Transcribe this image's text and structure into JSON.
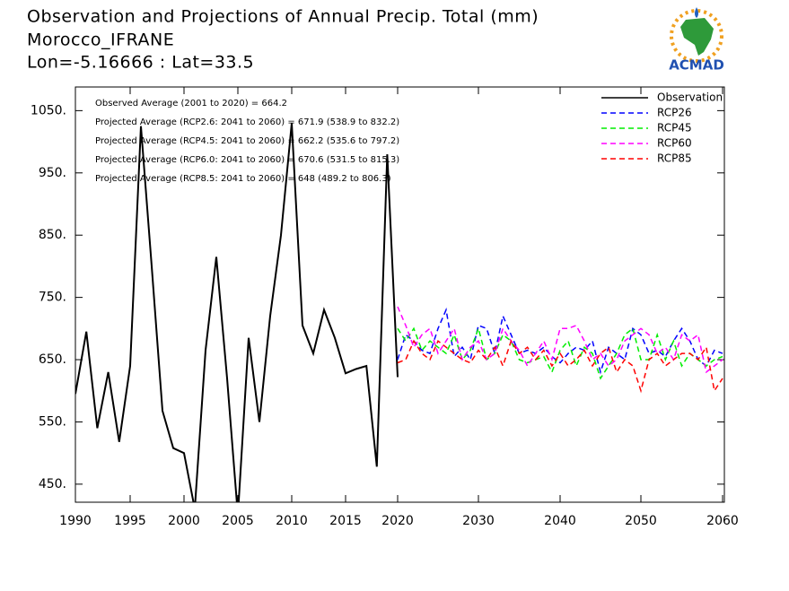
{
  "chart_data": {
    "type": "line",
    "title": "Observation and Projections of Annual Precip. Total (mm)",
    "subtitle": "Morocco_IFRANE",
    "location": "Lon=-5.16666 : Lat=33.5",
    "logo_text": "ACMAD",
    "annotations": [
      "Observed Average (2001 to 2020) = 664.2",
      "Projected Average (RCP2.6: 2041 to 2060) = 671.9 (538.9 to 832.2)",
      "Projected Average (RCP4.5: 2041 to 2060) = 662.2 (535.6 to 797.2)",
      "Projected Average (RCP6.0: 2041 to 2060) = 670.6 (531.5 to 815.3)",
      "Projected Average (RCP8.5: 2041 to 2060) = 648 (489.2 to 806.3)"
    ],
    "xlim": [
      1990,
      2060
    ],
    "xticks": [
      1990,
      1995,
      2000,
      2005,
      2010,
      2015,
      2020,
      2030,
      2040,
      2050,
      2060
    ],
    "ylim": [
      421,
      1088
    ],
    "yticks": [
      {
        "value": 450,
        "label": "450."
      },
      {
        "value": 550,
        "label": "550."
      },
      {
        "value": 650,
        "label": "650."
      },
      {
        "value": 750,
        "label": "750."
      },
      {
        "value": 850,
        "label": "850."
      },
      {
        "value": 950,
        "label": "950."
      },
      {
        "value": 1050,
        "label": "1050."
      }
    ],
    "legend": "upper right",
    "series": [
      {
        "name": "Observation",
        "color": "#000000",
        "dash": false,
        "x": [
          1990,
          1991,
          1992,
          1993,
          1994,
          1995,
          1996,
          1997,
          1998,
          1999,
          2000,
          2001,
          2002,
          2003,
          2004,
          2005,
          2006,
          2007,
          2008,
          2009,
          2010,
          2011,
          2012,
          2013,
          2014,
          2015,
          2016,
          2017,
          2018,
          2019,
          2020
        ],
        "values": [
          595,
          695,
          540,
          630,
          518,
          640,
          1025,
          800,
          568,
          508,
          500,
          410,
          665,
          815,
          620,
          400,
          685,
          550,
          720,
          850,
          1030,
          705,
          660,
          730,
          685,
          628,
          635,
          640,
          478,
          980,
          622
        ]
      },
      {
        "name": "RCP26",
        "color": "#0000ff",
        "dash": true,
        "x": [
          2020,
          2021,
          2022,
          2023,
          2024,
          2025,
          2026,
          2027,
          2028,
          2029,
          2030,
          2031,
          2032,
          2033,
          2034,
          2035,
          2036,
          2037,
          2038,
          2039,
          2040,
          2041,
          2042,
          2043,
          2044,
          2045,
          2046,
          2047,
          2048,
          2049,
          2050,
          2051,
          2052,
          2053,
          2054,
          2055,
          2056,
          2057,
          2058,
          2059,
          2060
        ],
        "values": [
          650,
          690,
          680,
          665,
          660,
          700,
          730,
          655,
          670,
          650,
          705,
          700,
          660,
          720,
          690,
          660,
          665,
          660,
          670,
          655,
          645,
          660,
          670,
          665,
          680,
          630,
          670,
          660,
          650,
          700,
          690,
          660,
          665,
          655,
          680,
          700,
          680,
          650,
          640,
          665,
          660
        ]
      },
      {
        "name": "RCP45",
        "color": "#00ee00",
        "dash": true,
        "x": [
          2020,
          2021,
          2022,
          2023,
          2024,
          2025,
          2026,
          2027,
          2028,
          2029,
          2030,
          2031,
          2032,
          2033,
          2034,
          2035,
          2036,
          2037,
          2038,
          2039,
          2040,
          2041,
          2042,
          2043,
          2044,
          2045,
          2046,
          2047,
          2048,
          2049,
          2050,
          2051,
          2052,
          2053,
          2054,
          2055,
          2056,
          2057,
          2058,
          2059,
          2060
        ],
        "values": [
          700,
          680,
          700,
          665,
          680,
          670,
          660,
          690,
          650,
          665,
          700,
          650,
          660,
          690,
          680,
          650,
          645,
          650,
          655,
          630,
          665,
          680,
          640,
          670,
          660,
          620,
          640,
          660,
          690,
          700,
          650,
          650,
          690,
          650,
          680,
          640,
          660,
          650,
          640,
          650,
          655
        ]
      },
      {
        "name": "RCP60",
        "color": "#ff00ff",
        "dash": true,
        "x": [
          2020,
          2021,
          2022,
          2023,
          2024,
          2025,
          2026,
          2027,
          2028,
          2029,
          2030,
          2031,
          2032,
          2033,
          2034,
          2035,
          2036,
          2037,
          2038,
          2039,
          2040,
          2041,
          2042,
          2043,
          2044,
          2045,
          2046,
          2047,
          2048,
          2049,
          2050,
          2051,
          2052,
          2053,
          2054,
          2055,
          2056,
          2057,
          2058,
          2059,
          2060
        ],
        "values": [
          735,
          705,
          670,
          690,
          700,
          660,
          680,
          700,
          650,
          670,
          680,
          650,
          660,
          700,
          680,
          665,
          640,
          660,
          680,
          650,
          700,
          700,
          705,
          680,
          650,
          660,
          640,
          650,
          680,
          690,
          700,
          690,
          660,
          670,
          650,
          690,
          680,
          690,
          630,
          640,
          650
        ]
      },
      {
        "name": "RCP85",
        "color": "#ff0000",
        "dash": true,
        "x": [
          2020,
          2021,
          2022,
          2023,
          2024,
          2025,
          2026,
          2027,
          2028,
          2029,
          2030,
          2031,
          2032,
          2033,
          2034,
          2035,
          2036,
          2037,
          2038,
          2039,
          2040,
          2041,
          2042,
          2043,
          2044,
          2045,
          2046,
          2047,
          2048,
          2049,
          2050,
          2051,
          2052,
          2053,
          2054,
          2055,
          2056,
          2057,
          2058,
          2059,
          2060
        ],
        "values": [
          645,
          650,
          680,
          660,
          650,
          680,
          670,
          660,
          650,
          645,
          665,
          650,
          670,
          640,
          680,
          660,
          670,
          650,
          665,
          640,
          660,
          640,
          650,
          665,
          640,
          660,
          670,
          630,
          650,
          640,
          600,
          650,
          660,
          640,
          650,
          660,
          660,
          650,
          670,
          600,
          620
        ]
      }
    ]
  }
}
